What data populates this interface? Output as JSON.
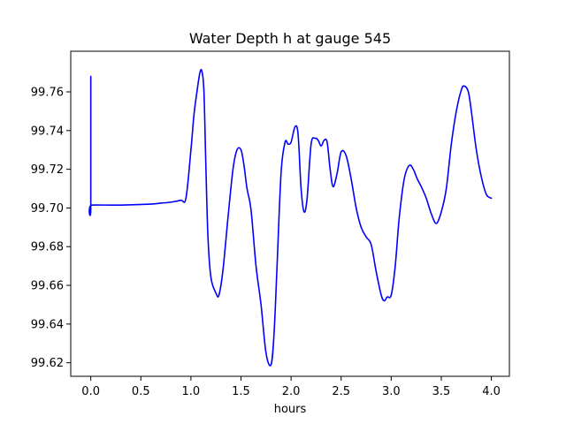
{
  "chart_data": {
    "type": "line",
    "title": "Water Depth h at gauge 545",
    "xlabel": "hours",
    "ylabel": "",
    "xlim": [
      -0.2,
      4.18
    ],
    "ylim": [
      99.613,
      99.781
    ],
    "grid": false,
    "legend": "none",
    "x_ticks": [
      0.0,
      0.5,
      1.0,
      1.5,
      2.0,
      2.5,
      3.0,
      3.5,
      4.0
    ],
    "x_tick_labels": [
      "0.0",
      "0.5",
      "1.0",
      "1.5",
      "2.0",
      "2.5",
      "3.0",
      "3.5",
      "4.0"
    ],
    "y_ticks": [
      99.62,
      99.64,
      99.66,
      99.68,
      99.7,
      99.72,
      99.74,
      99.76
    ],
    "y_tick_labels": [
      "99.62",
      "99.64",
      "99.66",
      "99.68",
      "99.70",
      "99.72",
      "99.74",
      "99.76"
    ],
    "series": [
      {
        "color": "#0000ff",
        "x": [
          0.0,
          0.0,
          0.01,
          0.3,
          0.6,
          0.7,
          0.8,
          0.9,
          0.95,
          1.0,
          1.03,
          1.06,
          1.09,
          1.11,
          1.13,
          1.15,
          1.17,
          1.2,
          1.25,
          1.28,
          1.32,
          1.37,
          1.42,
          1.46,
          1.5,
          1.53,
          1.56,
          1.6,
          1.65,
          1.7,
          1.75,
          1.8,
          1.83,
          1.86,
          1.9,
          1.94,
          1.97,
          2.0,
          2.04,
          2.07,
          2.1,
          2.13,
          2.16,
          2.2,
          2.24,
          2.27,
          2.3,
          2.33,
          2.36,
          2.39,
          2.42,
          2.46,
          2.5,
          2.55,
          2.6,
          2.65,
          2.7,
          2.75,
          2.8,
          2.85,
          2.9,
          2.93,
          2.96,
          3.0,
          3.04,
          3.08,
          3.13,
          3.18,
          3.22,
          3.26,
          3.3,
          3.35,
          3.4,
          3.45,
          3.5,
          3.55,
          3.6,
          3.65,
          3.7,
          3.73,
          3.77,
          3.8,
          3.85,
          3.9,
          3.95,
          4.0
        ],
        "y": [
          99.768,
          99.701,
          99.7015,
          99.7015,
          99.702,
          99.7025,
          99.703,
          99.704,
          99.705,
          99.73,
          99.748,
          99.76,
          99.77,
          99.7705,
          99.76,
          99.72,
          99.685,
          99.664,
          99.656,
          99.655,
          99.668,
          99.695,
          99.72,
          99.73,
          99.73,
          99.722,
          99.71,
          99.699,
          99.67,
          99.65,
          99.625,
          99.619,
          99.635,
          99.67,
          99.718,
          99.734,
          99.733,
          99.734,
          99.742,
          99.738,
          99.71,
          99.698,
          99.705,
          99.733,
          99.736,
          99.735,
          99.732,
          99.735,
          99.734,
          99.72,
          99.711,
          99.718,
          99.729,
          99.727,
          99.715,
          99.7,
          99.69,
          99.685,
          99.681,
          99.667,
          99.655,
          99.652,
          99.654,
          99.655,
          99.67,
          99.695,
          99.715,
          99.722,
          99.72,
          99.715,
          99.711,
          99.705,
          99.697,
          99.692,
          99.698,
          99.71,
          99.733,
          99.75,
          99.761,
          99.763,
          99.76,
          99.75,
          99.73,
          99.716,
          99.707,
          99.705
        ]
      }
    ]
  }
}
